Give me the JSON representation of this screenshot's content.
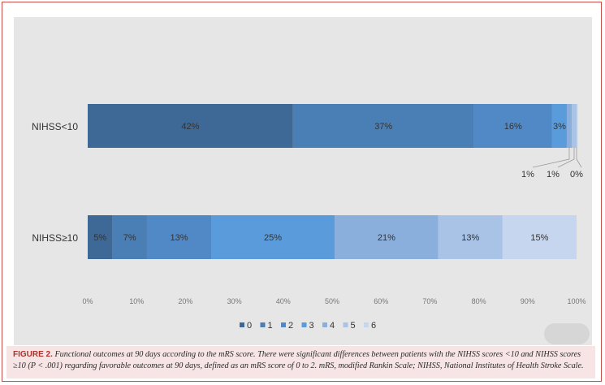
{
  "chart_data": {
    "type": "bar",
    "orientation": "horizontal",
    "stacked": "percent",
    "categories": [
      "NIHSS<10",
      "NIHSS≥10"
    ],
    "series": [
      {
        "name": "0",
        "values": [
          42,
          5
        ],
        "color": "#3e6896"
      },
      {
        "name": "1",
        "values": [
          37,
          7
        ],
        "color": "#4a7fb5"
      },
      {
        "name": "2",
        "values": [
          16,
          13
        ],
        "color": "#5089c6"
      },
      {
        "name": "3",
        "values": [
          3,
          25
        ],
        "color": "#5a9bdc"
      },
      {
        "name": "4",
        "values": [
          1,
          21
        ],
        "color": "#8aafdc"
      },
      {
        "name": "5",
        "values": [
          1,
          13
        ],
        "color": "#a9c3e6"
      },
      {
        "name": "6",
        "values": [
          0,
          15
        ],
        "color": "#c5d6ee"
      }
    ],
    "data_labels": [
      [
        "42%",
        "37%",
        "16%",
        "3%",
        "1%",
        "1%",
        "0%"
      ],
      [
        "5%",
        "7%",
        "13%",
        "25%",
        "21%",
        "13%",
        "15%"
      ]
    ],
    "xticks": [
      "0%",
      "10%",
      "20%",
      "30%",
      "40%",
      "50%",
      "60%",
      "70%",
      "80%",
      "90%",
      "100%"
    ],
    "xlim": [
      0,
      100
    ],
    "grid": false,
    "legend_position": "bottom"
  },
  "caption": {
    "label": "FIGURE 2.",
    "text": "Functional outcomes at 90 days according to the mRS score. There were significant differences between patients with the NIHSS scores <10 and NIHSS scores ≥10 (P < .001) regarding favorable outcomes at 90 days, defined as an mRS score of 0 to 2. mRS, modified Rankin Scale; NIHSS, National Institutes of Health Stroke Scale."
  }
}
